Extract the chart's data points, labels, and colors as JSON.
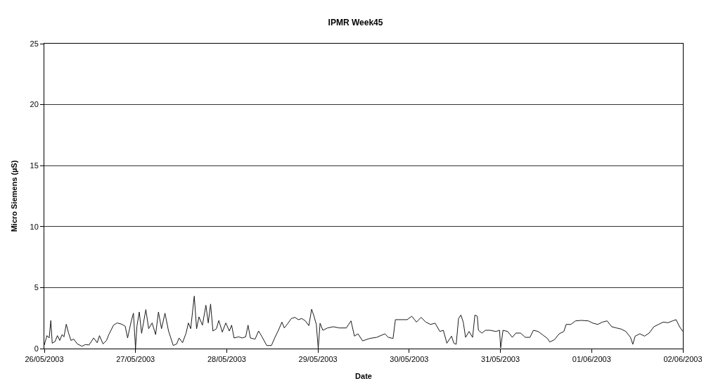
{
  "chart_data": {
    "type": "line",
    "title": "IPMR Week45",
    "xlabel": "Date",
    "ylabel": "Micro Siemens (µS)",
    "xlim": [
      "2003-05-26",
      "2003-06-02"
    ],
    "xticks": [
      {
        "value": "2003-05-26",
        "label": "26/05/2003"
      },
      {
        "value": "2003-05-27",
        "label": "27/05/2003"
      },
      {
        "value": "2003-05-28",
        "label": "28/05/2003"
      },
      {
        "value": "2003-05-29",
        "label": "29/05/2003"
      },
      {
        "value": "2003-05-30",
        "label": "30/05/2003"
      },
      {
        "value": "2003-05-31",
        "label": "31/05/2003"
      },
      {
        "value": "2003-06-01",
        "label": "01/06/2003"
      },
      {
        "value": "2003-06-02",
        "label": "02/06/2003"
      }
    ],
    "ylim": [
      0,
      25
    ],
    "yticks": [
      0,
      5,
      10,
      15,
      20,
      25
    ],
    "grid": "y",
    "marker": "none",
    "line_style": "solid",
    "series": [
      {
        "color": "#1a1a1a",
        "x": [
          "2003-05-26T00:00",
          "2003-05-26T00:41",
          "2003-05-26T01:17",
          "2003-05-26T01:43",
          "2003-05-26T02:05",
          "2003-05-26T02:50",
          "2003-05-26T03:27",
          "2003-05-26T04:04",
          "2003-05-26T04:41",
          "2003-05-26T05:10",
          "2003-05-26T05:47",
          "2003-05-26T06:24",
          "2003-05-26T07:01",
          "2003-05-26T07:45",
          "2003-05-26T08:41",
          "2003-05-26T09:55",
          "2003-05-26T10:50",
          "2003-05-26T11:45",
          "2003-05-26T12:59",
          "2003-05-26T13:55",
          "2003-05-26T14:31",
          "2003-05-26T15:27",
          "2003-05-26T16:22",
          "2003-05-26T16:59",
          "2003-05-26T18:13",
          "2003-05-26T19:08",
          "2003-05-26T20:22",
          "2003-05-26T21:17",
          "2003-05-26T21:55",
          "2003-05-26T22:50",
          "2003-05-26T23:27",
          "2003-05-27T00:00",
          "2003-05-27T00:22",
          "2003-05-27T00:59",
          "2003-05-27T01:36",
          "2003-05-27T02:43",
          "2003-05-27T03:27",
          "2003-05-27T04:22",
          "2003-05-27T05:17",
          "2003-05-27T06:02",
          "2003-05-27T06:50",
          "2003-05-27T07:45",
          "2003-05-27T08:41",
          "2003-05-27T09:17",
          "2003-05-27T09:55",
          "2003-05-27T10:50",
          "2003-05-27T11:27",
          "2003-05-27T12:22",
          "2003-05-27T13:17",
          "2003-05-27T13:55",
          "2003-05-27T14:31",
          "2003-05-27T15:27",
          "2003-05-27T16:04",
          "2003-05-27T16:41",
          "2003-05-27T17:36",
          "2003-05-27T18:31",
          "2003-05-27T19:08",
          "2003-05-27T19:45",
          "2003-05-27T20:22",
          "2003-05-27T21:17",
          "2003-05-27T21:55",
          "2003-05-27T22:50",
          "2003-05-27T23:45",
          "2003-05-28T00:41",
          "2003-05-28T01:17",
          "2003-05-28T01:55",
          "2003-05-28T03:08",
          "2003-05-28T04:04",
          "2003-05-28T04:59",
          "2003-05-28T05:36",
          "2003-05-28T06:13",
          "2003-05-28T07:27",
          "2003-05-28T08:22",
          "2003-05-28T09:17",
          "2003-05-28T10:31",
          "2003-05-28T11:45",
          "2003-05-28T12:41",
          "2003-05-28T13:36",
          "2003-05-28T14:31",
          "2003-05-28T15:08",
          "2003-05-28T16:04",
          "2003-05-28T16:59",
          "2003-05-28T17:55",
          "2003-05-28T18:50",
          "2003-05-28T19:45",
          "2003-05-28T20:41",
          "2003-05-28T21:36",
          "2003-05-28T22:20",
          "2003-05-28T22:57",
          "2003-05-28T23:34",
          "2003-05-29T00:04",
          "2003-05-29T00:33",
          "2003-05-29T01:17",
          "2003-05-29T02:31",
          "2003-05-29T04:04",
          "2003-05-29T05:36",
          "2003-05-29T07:27",
          "2003-05-29T08:41",
          "2003-05-29T09:36",
          "2003-05-29T10:31",
          "2003-05-29T11:45",
          "2003-05-29T13:36",
          "2003-05-29T15:27",
          "2003-05-29T17:36",
          "2003-05-29T18:31",
          "2003-05-29T19:45",
          "2003-05-29T20:22",
          "2003-05-29T23:27",
          "2003-05-30T00:41",
          "2003-05-30T01:55",
          "2003-05-30T03:08",
          "2003-05-30T04:22",
          "2003-05-30T05:36",
          "2003-05-30T06:50",
          "2003-05-30T08:04",
          "2003-05-30T08:59",
          "2003-05-30T09:55",
          "2003-05-30T11:08",
          "2003-05-30T11:45",
          "2003-05-30T12:22",
          "2003-05-30T12:59",
          "2003-05-30T13:36",
          "2003-05-30T14:13",
          "2003-05-30T14:50",
          "2003-05-30T15:45",
          "2003-05-30T16:41",
          "2003-05-30T17:17",
          "2003-05-30T17:55",
          "2003-05-30T18:13",
          "2003-05-30T19:08",
          "2003-05-30T20:04",
          "2003-05-30T21:17",
          "2003-05-30T22:50",
          "2003-05-30T23:46",
          "2003-05-31T00:04",
          "2003-05-31T00:41",
          "2003-05-31T01:55",
          "2003-05-31T03:08",
          "2003-05-31T04:04",
          "2003-05-31T05:17",
          "2003-05-31T06:32",
          "2003-05-31T07:46",
          "2003-05-31T08:41",
          "2003-05-31T09:55",
          "2003-05-31T11:08",
          "2003-05-31T12:22",
          "2003-05-31T12:59",
          "2003-05-31T14:13",
          "2003-05-31T15:27",
          "2003-05-31T16:41",
          "2003-05-31T17:18",
          "2003-05-31T18:32",
          "2003-05-31T19:46",
          "2003-05-31T21:17",
          "2003-05-31T23:08",
          "2003-06-01T00:22",
          "2003-06-01T01:36",
          "2003-06-01T02:50",
          "2003-06-01T04:04",
          "2003-06-01T05:17",
          "2003-06-01T06:32",
          "2003-06-01T07:46",
          "2003-06-01T08:59",
          "2003-06-01T10:13",
          "2003-06-01T10:50",
          "2003-06-01T11:27",
          "2003-06-01T12:41",
          "2003-06-01T13:55",
          "2003-06-01T15:08",
          "2003-06-01T16:22",
          "2003-06-01T17:36",
          "2003-06-01T18:50",
          "2003-06-01T20:04",
          "2003-06-01T21:17",
          "2003-06-01T22:13",
          "2003-06-01T23:08",
          "2003-06-02T00:00"
        ],
        "values": [
          0.29,
          1.06,
          0.87,
          2.3,
          0.44,
          0.58,
          1.06,
          0.67,
          1.15,
          0.96,
          2.0,
          1.25,
          0.67,
          0.77,
          0.38,
          0.19,
          0.33,
          0.29,
          0.87,
          0.48,
          1.06,
          0.38,
          0.67,
          1.15,
          1.92,
          2.1,
          2.0,
          1.83,
          0.87,
          2.2,
          2.9,
          0,
          1.83,
          3.0,
          1.25,
          3.2,
          1.63,
          2.1,
          1.15,
          3.0,
          1.63,
          2.9,
          1.44,
          0.87,
          0.25,
          0.38,
          0.87,
          0.48,
          1.25,
          2.1,
          1.63,
          4.3,
          1.63,
          2.6,
          1.92,
          3.55,
          2.1,
          3.65,
          1.44,
          1.63,
          2.3,
          1.35,
          2.1,
          1.44,
          1.92,
          0.87,
          0.96,
          0.87,
          0.96,
          1.92,
          0.87,
          0.77,
          1.44,
          0.96,
          0.25,
          0.25,
          0.92,
          1.5,
          2.17,
          1.69,
          2.06,
          2.46,
          2.56,
          2.37,
          2.46,
          2.27,
          1.88,
          3.23,
          2.65,
          1.98,
          0,
          2.08,
          1.5,
          1.69,
          1.79,
          1.69,
          1.69,
          2.27,
          1.02,
          1.21,
          0.63,
          0.83,
          0.92,
          1.21,
          0.92,
          0.83,
          2.37,
          2.37,
          2.65,
          2.17,
          2.56,
          2.17,
          1.98,
          2.08,
          1.4,
          1.5,
          0.44,
          1.02,
          0.44,
          0.35,
          2.46,
          2.75,
          2.17,
          0.92,
          1.4,
          0.92,
          2.75,
          2.65,
          1.5,
          1.27,
          1.5,
          1.5,
          1.4,
          1.5,
          0.06,
          1.5,
          1.4,
          0.92,
          1.27,
          1.27,
          0.92,
          0.92,
          1.5,
          1.4,
          1.12,
          0.83,
          0.54,
          0.73,
          1.21,
          1.4,
          1.98,
          1.98,
          2.27,
          2.31,
          2.27,
          2.08,
          1.98,
          2.17,
          2.27,
          1.79,
          1.69,
          1.6,
          1.4,
          0.92,
          0.35,
          1.02,
          1.21,
          1.02,
          1.27,
          1.79,
          1.98,
          2.17,
          2.12,
          2.27,
          2.37,
          1.79,
          1.4
        ]
      }
    ]
  }
}
